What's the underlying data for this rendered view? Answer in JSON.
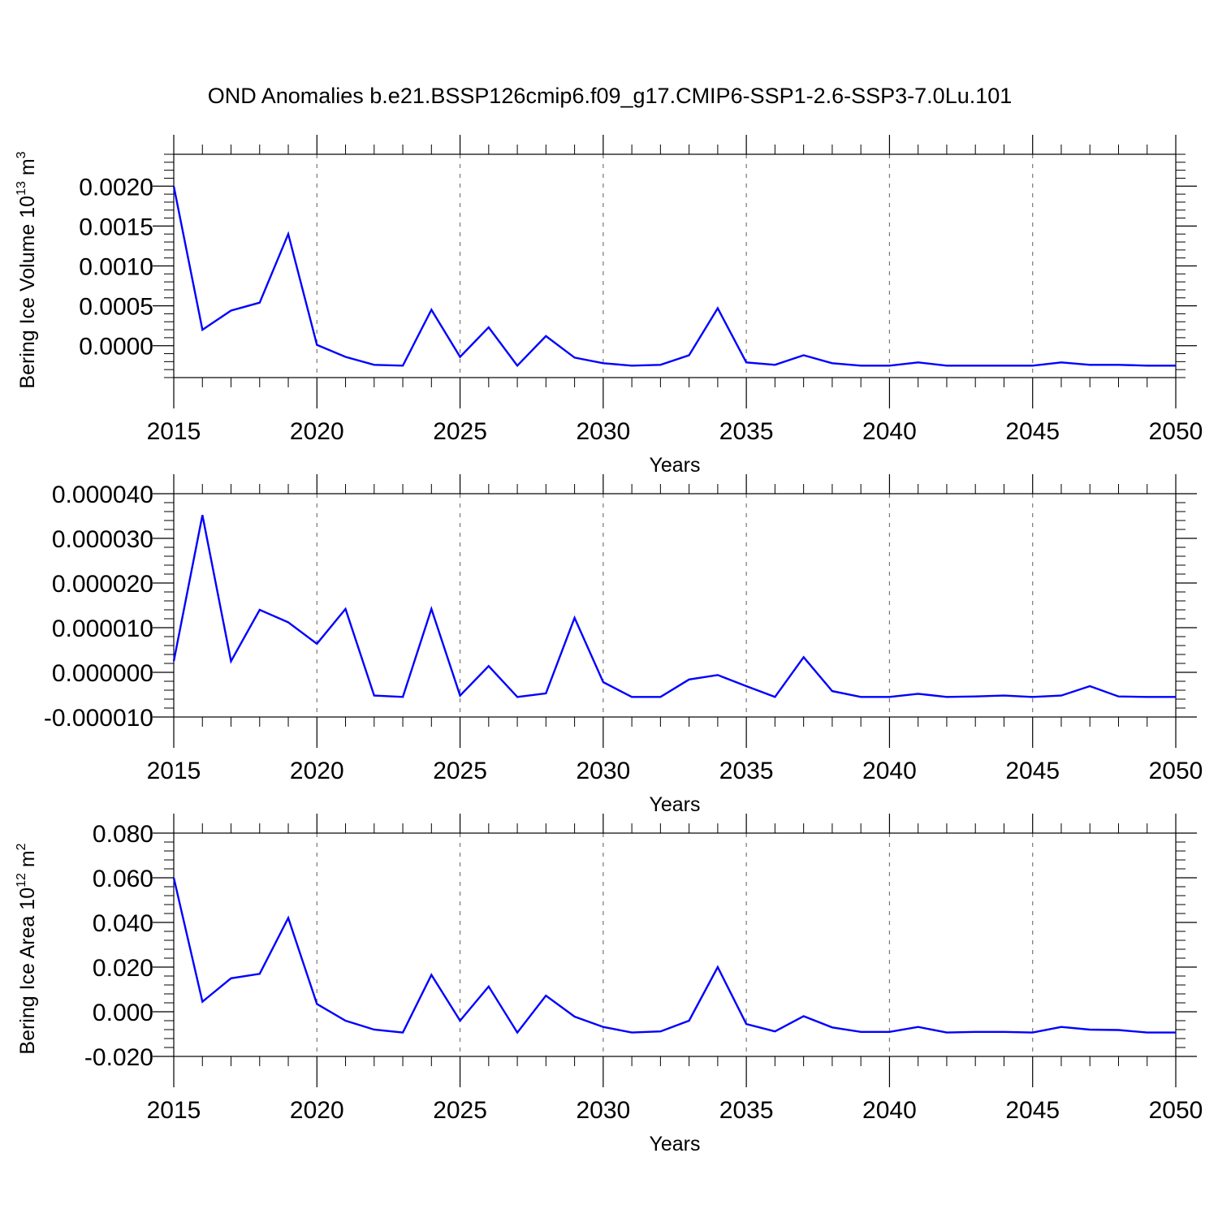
{
  "title": "OND Anomalies b.e21.BSSP126cmip6.f09_g17.CMIP6-SSP1-2.6-SSP3-7.0Lu.101",
  "colors": {
    "series": "#0000ff",
    "frame": "#000000",
    "grid": "#777777"
  },
  "chart_data": [
    {
      "type": "line",
      "xlabel": "Years",
      "ylabel": "Bering Ice Volume 10",
      "ylabel_sup": "13",
      "ylabel_unit": " m",
      "ylabel_unit_sup": "3",
      "xlim": [
        2015,
        2050
      ],
      "ylim": [
        -0.0004,
        0.0024
      ],
      "grid": "vertical dashed at major x ticks",
      "x_ticks": [
        2015,
        2020,
        2025,
        2030,
        2035,
        2040,
        2045,
        2050
      ],
      "x_tick_labels": [
        "2015",
        "2020",
        "2025",
        "2030",
        "2035",
        "2040",
        "2045",
        "2050"
      ],
      "y_ticks": [
        0.0,
        0.0005,
        0.001,
        0.0015,
        0.002
      ],
      "y_tick_labels": [
        "0.0000",
        "0.0005",
        "0.0010",
        "0.0015",
        "0.0020"
      ],
      "x": [
        2015,
        2016,
        2017,
        2018,
        2019,
        2020,
        2021,
        2022,
        2023,
        2024,
        2025,
        2026,
        2027,
        2028,
        2029,
        2030,
        2031,
        2032,
        2033,
        2034,
        2035,
        2036,
        2037,
        2038,
        2039,
        2040,
        2041,
        2042,
        2043,
        2044,
        2045,
        2046,
        2047,
        2048,
        2049,
        2050
      ],
      "y": [
        0.002,
        0.0002,
        0.00044,
        0.00054,
        0.0014,
        1e-05,
        -0.00014,
        -0.00024,
        -0.00025,
        0.00045,
        -0.00014,
        0.00023,
        -0.00025,
        0.00012,
        -0.00015,
        -0.00022,
        -0.00025,
        -0.00024,
        -0.00012,
        0.00047,
        -0.00021,
        -0.00024,
        -0.00012,
        -0.00022,
        -0.00025,
        -0.00025,
        -0.00021,
        -0.00025,
        -0.00025,
        -0.00025,
        -0.00025,
        -0.00021,
        -0.00024,
        -0.00024,
        -0.00025,
        -0.00025
      ]
    },
    {
      "type": "line",
      "xlabel": "Years",
      "ylabel": "",
      "xlim": [
        2015,
        2050
      ],
      "ylim": [
        -1e-05,
        4e-05
      ],
      "grid": "vertical dashed at major x ticks",
      "x_ticks": [
        2015,
        2020,
        2025,
        2030,
        2035,
        2040,
        2045,
        2050
      ],
      "x_tick_labels": [
        "2015",
        "2020",
        "2025",
        "2030",
        "2035",
        "2040",
        "2045",
        "2050"
      ],
      "y_ticks": [
        -1e-05,
        0.0,
        1e-05,
        2e-05,
        3e-05,
        4e-05
      ],
      "y_tick_labels": [
        "-0.000010",
        "0.000000",
        "0.000010",
        "0.000020",
        "0.000030",
        "0.000040"
      ],
      "x": [
        2015,
        2016,
        2017,
        2018,
        2019,
        2020,
        2021,
        2022,
        2023,
        2024,
        2025,
        2026,
        2027,
        2028,
        2029,
        2030,
        2031,
        2032,
        2033,
        2034,
        2035,
        2036,
        2037,
        2038,
        2039,
        2040,
        2041,
        2042,
        2043,
        2044,
        2045,
        2046,
        2047,
        2048,
        2049,
        2050
      ],
      "y": [
        2.5e-06,
        3.52e-05,
        2.5e-06,
        1.4e-05,
        1.12e-05,
        6.4e-06,
        1.42e-05,
        -5.2e-06,
        -5.5e-06,
        1.42e-05,
        -5.2e-06,
        1.4e-06,
        -5.5e-06,
        -4.7e-06,
        1.22e-05,
        -2.2e-06,
        -5.5e-06,
        -5.5e-06,
        -1.6e-06,
        -6e-07,
        -3.1e-06,
        -5.5e-06,
        3.4e-06,
        -4.2e-06,
        -5.5e-06,
        -5.5e-06,
        -4.8e-06,
        -5.5e-06,
        -5.4e-06,
        -5.2e-06,
        -5.5e-06,
        -5.2e-06,
        -3.1e-06,
        -5.4e-06,
        -5.5e-06,
        -5.5e-06
      ]
    },
    {
      "type": "line",
      "xlabel": "Years",
      "ylabel": "Bering Ice Area 10",
      "ylabel_sup": "12",
      "ylabel_unit": " m",
      "ylabel_unit_sup": "2",
      "xlim": [
        2015,
        2050
      ],
      "ylim": [
        -0.02,
        0.08
      ],
      "grid": "vertical dashed at major x ticks",
      "x_ticks": [
        2015,
        2020,
        2025,
        2030,
        2035,
        2040,
        2045,
        2050
      ],
      "x_tick_labels": [
        "2015",
        "2020",
        "2025",
        "2030",
        "2035",
        "2040",
        "2045",
        "2050"
      ],
      "y_ticks": [
        -0.02,
        0.0,
        0.02,
        0.04,
        0.06,
        0.08
      ],
      "y_tick_labels": [
        "-0.020",
        "0.000",
        "0.020",
        "0.040",
        "0.060",
        "0.080"
      ],
      "x": [
        2015,
        2016,
        2017,
        2018,
        2019,
        2020,
        2021,
        2022,
        2023,
        2024,
        2025,
        2026,
        2027,
        2028,
        2029,
        2030,
        2031,
        2032,
        2033,
        2034,
        2035,
        2036,
        2037,
        2038,
        2039,
        2040,
        2041,
        2042,
        2043,
        2044,
        2045,
        2046,
        2047,
        2048,
        2049,
        2050
      ],
      "y": [
        0.06,
        0.0045,
        0.015,
        0.017,
        0.042,
        0.0035,
        -0.004,
        -0.008,
        -0.0093,
        0.0165,
        -0.004,
        0.0113,
        -0.0093,
        0.0072,
        -0.0022,
        -0.0068,
        -0.0093,
        -0.0088,
        -0.004,
        0.02,
        -0.0055,
        -0.0088,
        -0.002,
        -0.007,
        -0.009,
        -0.009,
        -0.0068,
        -0.0093,
        -0.009,
        -0.009,
        -0.0093,
        -0.0068,
        -0.008,
        -0.0082,
        -0.0093,
        -0.0093
      ]
    }
  ]
}
